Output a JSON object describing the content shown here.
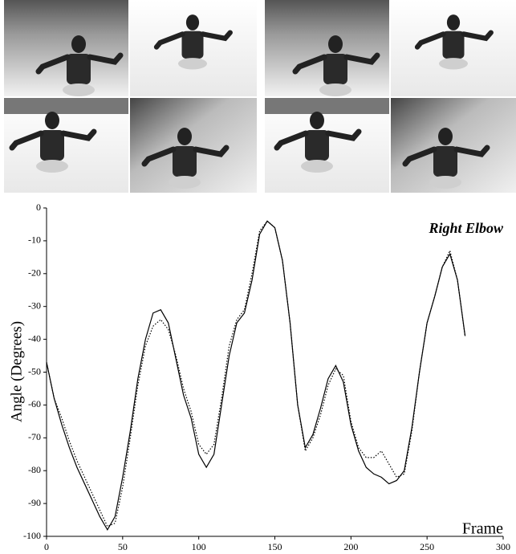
{
  "chart_data": {
    "type": "line",
    "annotation": "Right Elbow",
    "xlabel": "Frame",
    "ylabel": "Angle (Degrees)",
    "x": [
      0,
      5,
      10,
      15,
      20,
      25,
      30,
      35,
      40,
      45,
      50,
      55,
      60,
      65,
      70,
      75,
      80,
      85,
      90,
      95,
      100,
      105,
      110,
      115,
      120,
      125,
      130,
      135,
      140,
      145,
      150,
      155,
      160,
      165,
      170,
      175,
      180,
      185,
      190,
      195,
      200,
      205,
      210,
      215,
      220,
      225,
      230,
      235,
      240,
      245,
      250,
      255,
      260,
      265,
      270,
      275
    ],
    "series": [
      {
        "color": "#000000",
        "style": "solid",
        "values": [
          -47,
          -58,
          -66,
          -73,
          -79,
          -84,
          -89,
          -94,
          -98,
          -94,
          -82,
          -68,
          -52,
          -40,
          -32,
          -31,
          -35,
          -46,
          -57,
          -64,
          -75,
          -79,
          -75,
          -60,
          -45,
          -35,
          -32,
          -22,
          -8,
          -4,
          -6,
          -16,
          -35,
          -60,
          -73,
          -69,
          -61,
          -52,
          -48,
          -53,
          -66,
          -74,
          -79,
          -81,
          -82,
          -84,
          -83,
          -80,
          -67,
          -50,
          -35,
          -27,
          -18,
          -14,
          -22,
          -39
        ]
      },
      {
        "color": "#000000",
        "style": "dotted",
        "values": [
          -47,
          -58,
          -64,
          -71,
          -77,
          -82,
          -87,
          -92,
          -97,
          -96,
          -85,
          -70,
          -54,
          -42,
          -36,
          -34,
          -37,
          -45,
          -55,
          -62,
          -72,
          -75,
          -72,
          -58,
          -42,
          -34,
          -31,
          -20,
          -7,
          -4,
          -6,
          -16,
          -35,
          -60,
          -74,
          -70,
          -63,
          -54,
          -49,
          -51,
          -65,
          -73,
          -76,
          -76,
          -74,
          -78,
          -82,
          -81,
          -68,
          -50,
          -35,
          -27,
          -18,
          -13,
          -22,
          -39
        ]
      }
    ],
    "xlim": [
      0,
      300
    ],
    "xticks": [
      0,
      50,
      100,
      150,
      200,
      250,
      300
    ],
    "ylim": [
      -100,
      0
    ],
    "yticks": [
      0,
      -10,
      -20,
      -30,
      -40,
      -50,
      -60,
      -70,
      -80,
      -90,
      -100
    ]
  }
}
